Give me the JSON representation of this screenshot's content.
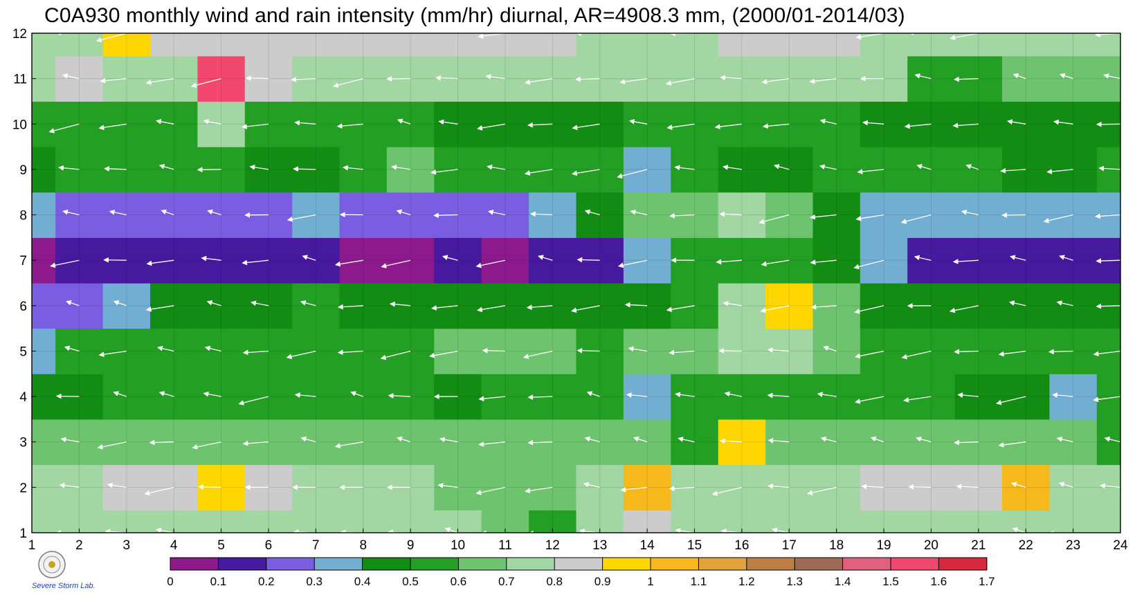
{
  "title": "C0A930 monthly wind and rain intensity (mm/hr) diurnal, AR=4908.3 mm, (2000/01-2014/03)",
  "logo_text": "Severe Storm Lab.",
  "chart_data": {
    "type": "heatmap",
    "subtype": "filled-contour with wind vectors",
    "title": "C0A930 monthly wind and rain intensity (mm/hr) diurnal, AR=4908.3 mm, (2000/01-2014/03)",
    "xlabel": "",
    "ylabel": "",
    "x": [
      1,
      2,
      3,
      4,
      5,
      6,
      7,
      8,
      9,
      10,
      11,
      12,
      13,
      14,
      15,
      16,
      17,
      18,
      19,
      20,
      21,
      22,
      23,
      24
    ],
    "y": [
      1,
      2,
      3,
      4,
      5,
      6,
      7,
      8,
      9,
      10,
      11,
      12
    ],
    "xlim": [
      1,
      24
    ],
    "ylim": [
      1,
      12
    ],
    "grid": true,
    "colorbar": {
      "ticks": [
        "0",
        "0.1",
        "0.2",
        "0.3",
        "0.4",
        "0.5",
        "0.6",
        "0.7",
        "0.8",
        "0.9",
        "1",
        "1.1",
        "1.2",
        "1.3",
        "1.4",
        "1.5",
        "1.6",
        "1.7"
      ],
      "colors": [
        "#8c1a8c",
        "#46199e",
        "#7a5ee2",
        "#72aed2",
        "#138c13",
        "#23a023",
        "#6ec46e",
        "#a2d6a2",
        "#cccccc",
        "#ffd700",
        "#f7b81b",
        "#e1a33a",
        "#be7f45",
        "#9e6a56",
        "#e0607e",
        "#f2486e",
        "#d8283e"
      ],
      "placement": "bottom"
    },
    "values": [
      [
        0.75,
        0.75,
        0.75,
        0.75,
        0.75,
        0.75,
        0.75,
        0.75,
        0.75,
        0.75,
        0.65,
        0.55,
        0.75,
        0.85,
        0.75,
        0.75,
        0.75,
        0.75,
        0.75,
        0.75,
        0.75,
        0.75,
        0.75,
        0.75
      ],
      [
        0.75,
        0.75,
        0.85,
        0.85,
        0.95,
        0.85,
        0.75,
        0.75,
        0.75,
        0.65,
        0.65,
        0.65,
        0.75,
        1.05,
        0.75,
        0.75,
        0.75,
        0.75,
        0.85,
        0.85,
        0.85,
        1.05,
        0.75,
        0.75
      ],
      [
        0.65,
        0.65,
        0.65,
        0.65,
        0.65,
        0.65,
        0.65,
        0.65,
        0.65,
        0.65,
        0.65,
        0.65,
        0.65,
        0.65,
        0.55,
        0.95,
        0.65,
        0.65,
        0.65,
        0.65,
        0.65,
        0.65,
        0.65,
        0.55
      ],
      [
        0.45,
        0.45,
        0.55,
        0.55,
        0.55,
        0.55,
        0.55,
        0.55,
        0.55,
        0.45,
        0.55,
        0.55,
        0.55,
        0.35,
        0.55,
        0.55,
        0.55,
        0.55,
        0.55,
        0.55,
        0.45,
        0.45,
        0.35,
        0.55
      ],
      [
        0.35,
        0.55,
        0.55,
        0.55,
        0.55,
        0.55,
        0.55,
        0.55,
        0.55,
        0.65,
        0.65,
        0.65,
        0.55,
        0.65,
        0.65,
        0.75,
        0.75,
        0.65,
        0.55,
        0.55,
        0.55,
        0.55,
        0.55,
        0.55
      ],
      [
        0.25,
        0.25,
        0.35,
        0.45,
        0.45,
        0.45,
        0.55,
        0.45,
        0.45,
        0.45,
        0.45,
        0.45,
        0.45,
        0.45,
        0.55,
        0.75,
        0.95,
        0.65,
        0.45,
        0.45,
        0.45,
        0.45,
        0.45,
        0.45
      ],
      [
        0.05,
        0.15,
        0.15,
        0.15,
        0.15,
        0.15,
        0.15,
        0.05,
        0.05,
        0.15,
        0.05,
        0.15,
        0.15,
        0.35,
        0.55,
        0.55,
        0.55,
        0.45,
        0.35,
        0.15,
        0.15,
        0.15,
        0.15,
        0.15
      ],
      [
        0.35,
        0.25,
        0.25,
        0.25,
        0.25,
        0.25,
        0.35,
        0.25,
        0.25,
        0.25,
        0.25,
        0.35,
        0.45,
        0.65,
        0.65,
        0.75,
        0.65,
        0.45,
        0.35,
        0.35,
        0.35,
        0.35,
        0.35,
        0.35
      ],
      [
        0.45,
        0.55,
        0.55,
        0.55,
        0.55,
        0.45,
        0.45,
        0.55,
        0.65,
        0.55,
        0.55,
        0.55,
        0.55,
        0.35,
        0.55,
        0.45,
        0.45,
        0.55,
        0.55,
        0.55,
        0.55,
        0.45,
        0.45,
        0.55
      ],
      [
        0.55,
        0.55,
        0.55,
        0.55,
        0.75,
        0.55,
        0.55,
        0.55,
        0.55,
        0.45,
        0.45,
        0.45,
        0.45,
        0.55,
        0.55,
        0.55,
        0.55,
        0.55,
        0.45,
        0.45,
        0.45,
        0.45,
        0.45,
        0.45
      ],
      [
        0.75,
        0.85,
        0.75,
        0.75,
        1.55,
        0.85,
        0.75,
        0.75,
        0.75,
        0.75,
        0.75,
        0.75,
        0.75,
        0.75,
        0.75,
        0.75,
        0.75,
        0.75,
        0.75,
        0.55,
        0.55,
        0.65,
        0.65,
        0.65
      ],
      [
        0.75,
        0.75,
        0.95,
        0.85,
        0.85,
        0.85,
        0.85,
        0.85,
        0.85,
        0.85,
        0.85,
        0.85,
        0.75,
        0.75,
        0.75,
        0.85,
        0.85,
        0.85,
        0.75,
        0.75,
        0.75,
        0.75,
        0.75,
        0.75
      ]
    ],
    "contour_labels": []
  }
}
